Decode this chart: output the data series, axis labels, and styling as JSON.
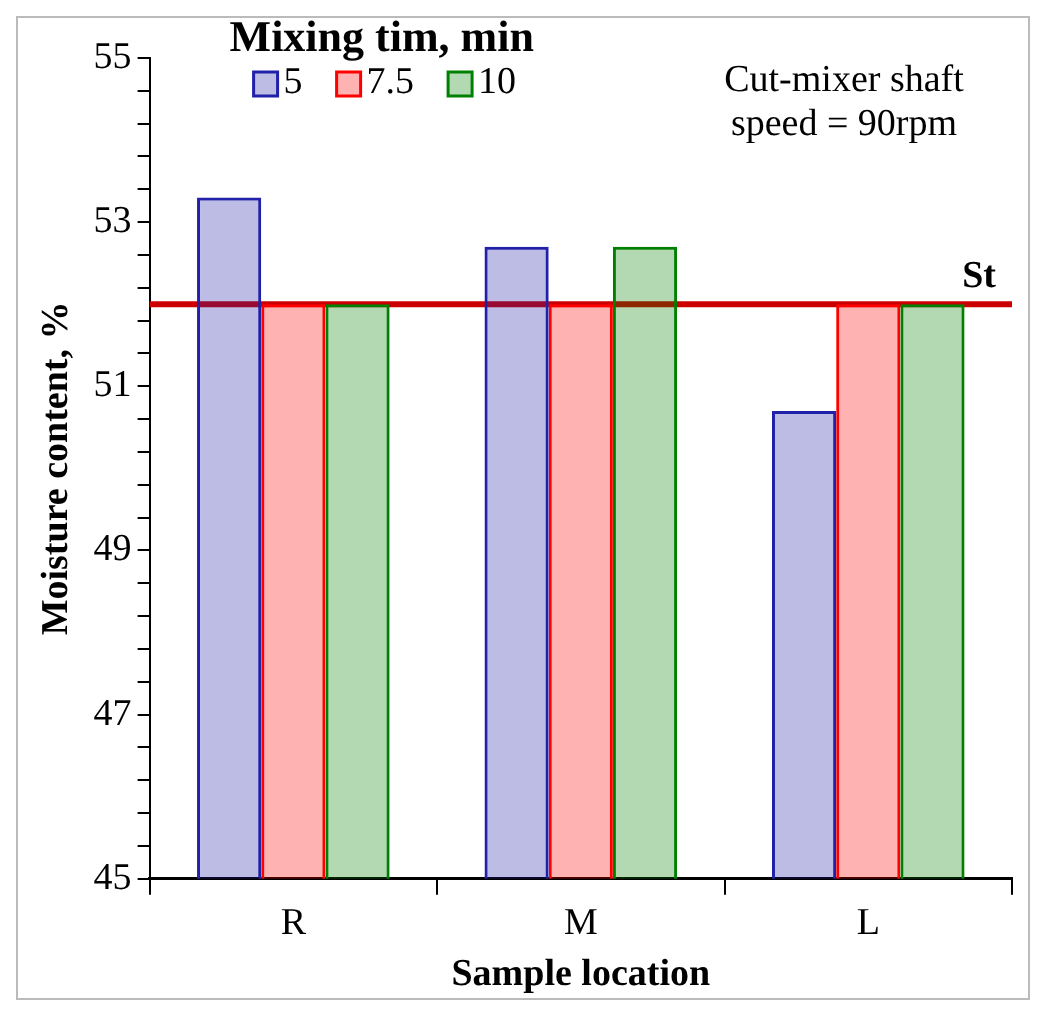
{
  "chart_data": {
    "type": "bar",
    "xlabel": "Sample location",
    "ylabel": "Moisture content, %",
    "legend_title": "Mixing tim, min",
    "categories": [
      "R",
      "M",
      "L"
    ],
    "series": [
      {
        "name": "5",
        "color": "#2020a8",
        "values": [
          53.3,
          52.7,
          50.7
        ]
      },
      {
        "name": "7.5",
        "color": "#ff0000",
        "values": [
          52,
          52,
          52
        ]
      },
      {
        "name": "10",
        "color": "#008000",
        "values": [
          52,
          52.7,
          52
        ]
      }
    ],
    "ylim": [
      45,
      55
    ],
    "yticks": [
      45,
      {
        "value": 45.4,
        "label": null
      },
      {
        "value": 45.8,
        "label": null
      },
      {
        "value": 46.2,
        "label": null
      },
      {
        "value": 46.6,
        "label": null
      },
      47,
      {
        "value": 47.4,
        "label": null
      },
      {
        "value": 47.8,
        "label": null
      },
      {
        "value": 48.2,
        "label": null
      },
      {
        "value": 48.6,
        "label": null
      },
      49,
      {
        "value": 49.4,
        "label": null
      },
      {
        "value": 49.8,
        "label": null
      },
      {
        "value": 50.2,
        "label": null
      },
      {
        "value": 50.6,
        "label": null
      },
      51,
      {
        "value": 51.4,
        "label": null
      },
      {
        "value": 51.8,
        "label": null
      },
      {
        "value": 52.2,
        "label": null
      },
      {
        "value": 52.6,
        "label": null
      },
      53,
      {
        "value": 53.4,
        "label": null
      },
      {
        "value": 53.8,
        "label": null
      },
      {
        "value": 54.2,
        "label": null
      },
      {
        "value": 54.6,
        "label": null
      },
      55
    ],
    "ref_lines": [
      {
        "axis": "y",
        "value": 52,
        "label": "St",
        "color": "#cc0000"
      }
    ],
    "annotations": [
      "Cut-mixer shaft speed = 90rpm"
    ],
    "legend": "top left",
    "grid": false
  }
}
